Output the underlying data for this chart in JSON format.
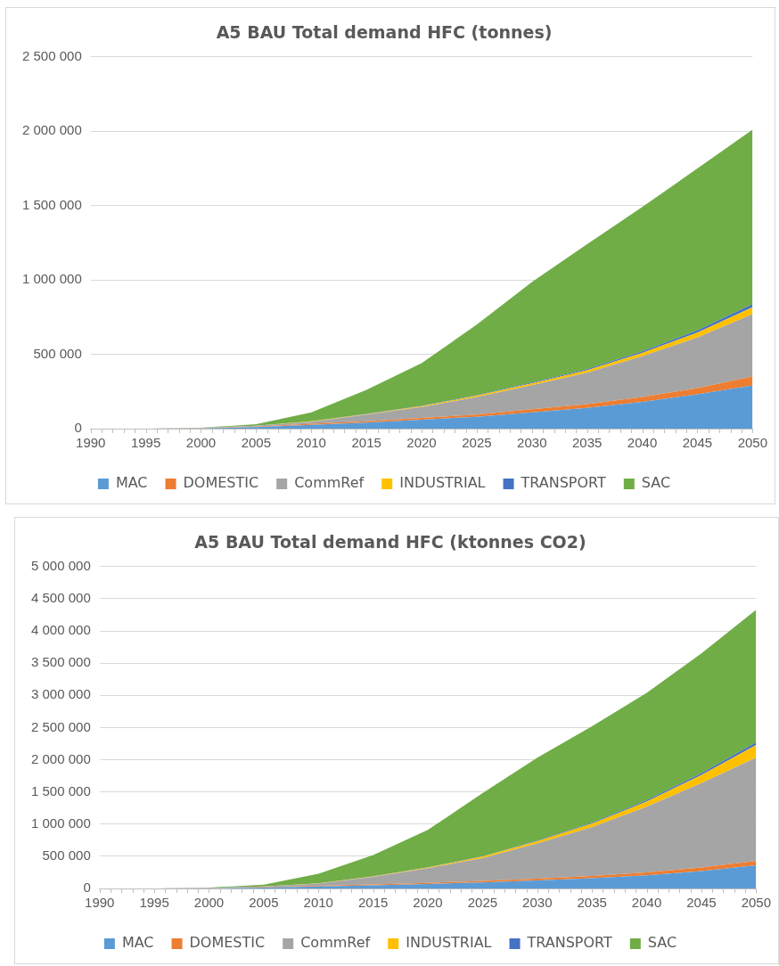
{
  "chart_data": [
    {
      "type": "area",
      "title": "A5 BAU Total demand HFC (tonnes)",
      "stacked": true,
      "grid": "y",
      "legend": "bottom",
      "x": [
        1990,
        1995,
        2000,
        2005,
        2010,
        2015,
        2020,
        2025,
        2030,
        2035,
        2040,
        2045,
        2050
      ],
      "xlim": [
        1990,
        2050
      ],
      "xticks": [
        1990,
        1995,
        2000,
        2005,
        2010,
        2015,
        2020,
        2025,
        2030,
        2035,
        2040,
        2045,
        2050
      ],
      "ylim": [
        0,
        2500000
      ],
      "yticks": [
        {
          "value": 0,
          "label": "0"
        },
        {
          "value": 500000,
          "label": "500 000"
        },
        {
          "value": 1000000,
          "label": "1 000 000"
        },
        {
          "value": 1500000,
          "label": "1 500 000"
        },
        {
          "value": 2000000,
          "label": "2 000 000"
        },
        {
          "value": 2500000,
          "label": "2 500 000"
        }
      ],
      "series": [
        {
          "name": "MAC",
          "color": "#5b9bd5",
          "values": [
            0,
            0,
            2000,
            10000,
            25000,
            40000,
            60000,
            80000,
            110000,
            140000,
            180000,
            230000,
            290000
          ]
        },
        {
          "name": "DOMESTIC",
          "color": "#ed7d31",
          "values": [
            0,
            0,
            1000,
            4000,
            8000,
            10000,
            12000,
            15000,
            20000,
            25000,
            32000,
            42000,
            60000
          ]
        },
        {
          "name": "CommRef",
          "color": "#a5a5a5",
          "values": [
            0,
            0,
            1000,
            5000,
            14000,
            44000,
            74000,
            117000,
            162000,
            211000,
            275000,
            341000,
            420000
          ]
        },
        {
          "name": "INDUSTRIAL",
          "color": "#ffc000",
          "values": [
            0,
            0,
            0,
            1000,
            2000,
            4000,
            6000,
            9000,
            12000,
            16000,
            22000,
            32000,
            47000
          ]
        },
        {
          "name": "TRANSPORT",
          "color": "#4472c4",
          "values": [
            0,
            0,
            0,
            0,
            1000,
            2000,
            3000,
            4000,
            6000,
            8000,
            11000,
            15000,
            20000
          ]
        },
        {
          "name": "SAC",
          "color": "#70ad47",
          "values": [
            0,
            0,
            2000,
            10000,
            60000,
            160000,
            285000,
            475000,
            675000,
            840000,
            970000,
            1090000,
            1173000
          ]
        }
      ]
    },
    {
      "type": "area",
      "title": "A5 BAU Total demand HFC (ktonnes CO2)",
      "stacked": true,
      "grid": "y",
      "legend": "bottom",
      "x": [
        1990,
        1995,
        2000,
        2005,
        2010,
        2015,
        2020,
        2025,
        2030,
        2035,
        2040,
        2045,
        2050
      ],
      "xlim": [
        1990,
        2050
      ],
      "xticks": [
        1990,
        1995,
        2000,
        2005,
        2010,
        2015,
        2020,
        2025,
        2030,
        2035,
        2040,
        2045,
        2050
      ],
      "ylim": [
        0,
        5000000
      ],
      "yticks": [
        {
          "value": 0,
          "label": "0"
        },
        {
          "value": 500000,
          "label": "500 000"
        },
        {
          "value": 1000000,
          "label": "1 000 000"
        },
        {
          "value": 1500000,
          "label": "1 500 000"
        },
        {
          "value": 2000000,
          "label": "2 000 000"
        },
        {
          "value": 2500000,
          "label": "2 500 000"
        },
        {
          "value": 3000000,
          "label": "3 000 000"
        },
        {
          "value": 3500000,
          "label": "3 500 000"
        },
        {
          "value": 4000000,
          "label": "4 000 000"
        },
        {
          "value": 4500000,
          "label": "4 500 000"
        },
        {
          "value": 5000000,
          "label": "5 000 000"
        }
      ],
      "series": [
        {
          "name": "MAC",
          "color": "#5b9bd5",
          "values": [
            0,
            0,
            5000,
            15000,
            30000,
            50000,
            70000,
            95000,
            125000,
            160000,
            205000,
            270000,
            360000
          ]
        },
        {
          "name": "DOMESTIC",
          "color": "#ed7d31",
          "values": [
            0,
            0,
            2000,
            5000,
            10000,
            14000,
            18000,
            22000,
            28000,
            35000,
            43000,
            55000,
            70000
          ]
        },
        {
          "name": "CommRef",
          "color": "#a5a5a5",
          "values": [
            0,
            0,
            3000,
            10000,
            36000,
            117000,
            226000,
            355000,
            547000,
            756000,
            1022000,
            1312000,
            1600000
          ]
        },
        {
          "name": "INDUSTRIAL",
          "color": "#ffc000",
          "values": [
            0,
            0,
            0,
            0,
            3000,
            7000,
            12000,
            22000,
            35000,
            55000,
            80000,
            125000,
            200000
          ]
        },
        {
          "name": "TRANSPORT",
          "color": "#4472c4",
          "values": [
            0,
            0,
            0,
            0,
            1000,
            2000,
            4000,
            6000,
            10000,
            14000,
            20000,
            28000,
            40000
          ]
        },
        {
          "name": "SAC",
          "color": "#70ad47",
          "values": [
            0,
            0,
            4000,
            30000,
            150000,
            330000,
            580000,
            980000,
            1285000,
            1500000,
            1670000,
            1860000,
            2060000
          ]
        }
      ]
    }
  ]
}
